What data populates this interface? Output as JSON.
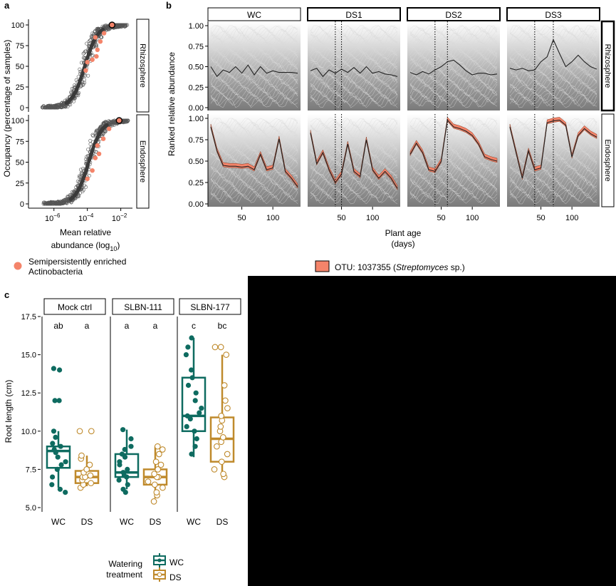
{
  "panel_a": {
    "label": "a",
    "ylabel": "Occupancy (percentage of samples)",
    "xlabel_line1": "Mean relative",
    "xlabel_line2_pre": "abundance (log",
    "xlabel_line2_sub": "10",
    "xlabel_line2_post": ")",
    "y_ticks": [
      "100",
      "75",
      "50",
      "25",
      "0"
    ],
    "x_ticks": [
      {
        "base": "10",
        "exp": "−6"
      },
      {
        "base": "10",
        "exp": "−4"
      },
      {
        "base": "10",
        "exp": "−2"
      }
    ],
    "strips": [
      "Rhizosphere",
      "Endosphere"
    ],
    "legend_line1": "Semipersistently enriched",
    "legend_line2": "Actinobacteria",
    "highlight_color": "#f4846a"
  },
  "panel_b": {
    "label": "b",
    "ylabel": "Ranked relative abundance",
    "xlabel_line1": "Plant age",
    "xlabel_line2": "(days)",
    "y_ticks": [
      "1.00",
      "0.75",
      "0.50",
      "0.25",
      "0.00"
    ],
    "x_ticks": [
      "50",
      "100"
    ],
    "facets": [
      "WC",
      "DS1",
      "DS2",
      "DS3"
    ],
    "strips": [
      "Rhizosphere",
      "Endosphere"
    ],
    "legend_pre": "OTU: 1037355 (",
    "legend_italic": "Streptomyces",
    "legend_post": " sp.)",
    "otu_color": "#f4846a"
  },
  "panel_c": {
    "label": "c",
    "ylabel": "Root length (cm)",
    "y_ticks": [
      "17.5",
      "15.0",
      "12.5",
      "10.0",
      "7.5",
      "5.0"
    ],
    "facets": [
      "Mock ctrl",
      "SLBN-111",
      "SLBN-177"
    ],
    "x_labels": [
      "WC",
      "DS"
    ],
    "letters": [
      "ab",
      "a",
      "a",
      "a",
      "c",
      "bc"
    ],
    "legend_title_line1": "Watering",
    "legend_title_line2": "treatment",
    "legend_items": [
      "WC",
      "DS"
    ],
    "colors": {
      "WC": "#0e6b60",
      "DS": "#bf8a2c"
    }
  },
  "chart_data": [
    {
      "type": "scatter",
      "panel": "a",
      "xlabel": "Mean relative abundance (log10)",
      "ylabel": "Occupancy (percentage of samples)",
      "xscale": "log",
      "xlim": [
        3e-08,
        0.05
      ],
      "ylim": [
        0,
        100
      ],
      "facets": [
        "Rhizosphere",
        "Endosphere"
      ],
      "series": [
        {
          "name": "Semipersistently enriched Actinobacteria",
          "points": {
            "Rhizosphere": [
              [
                0.0002,
                58
              ],
              [
                0.00035,
                62
              ],
              [
                0.0004,
                70
              ],
              [
                8e-05,
                45
              ],
              [
                0.0001,
                55
              ],
              [
                0.0006,
                80
              ],
              [
                0.001,
                90
              ],
              [
                0.003,
                100
              ],
              [
                0.0003,
                85
              ]
            ],
            "Endosphere": [
              [
                0.0001,
                30
              ],
              [
                0.0002,
                40
              ],
              [
                0.0003,
                55
              ],
              [
                0.0005,
                60
              ],
              [
                0.0009,
                78
              ],
              [
                0.002,
                90
              ],
              [
                0.008,
                100
              ],
              [
                0.0004,
                70
              ]
            ]
          }
        }
      ]
    },
    {
      "type": "line",
      "panel": "b",
      "xlabel": "Plant age (days)",
      "ylabel": "Ranked relative abundance",
      "ylim": [
        0,
        1
      ],
      "facets": [
        "WC",
        "DS1",
        "DS2",
        "DS3"
      ],
      "rows": [
        "Rhizosphere",
        "Endosphere"
      ],
      "series": [
        {
          "name": "OTU: 1037355 (Streptomyces sp.)",
          "x": [
            0,
            10,
            20,
            30,
            40,
            50,
            60,
            70,
            80,
            90,
            100,
            110,
            120,
            130,
            140
          ],
          "values": {
            "WC_Rhizosphere": [
              0.5,
              0.38,
              0.46,
              0.43,
              0.5,
              0.42,
              0.52,
              0.4,
              0.5,
              0.42,
              0.45,
              0.43,
              0.43,
              0.43,
              0.42
            ],
            "DS1_Rhizosphere": [
              0.45,
              0.48,
              0.38,
              0.46,
              0.42,
              0.47,
              0.43,
              0.49,
              0.42,
              0.5,
              0.42,
              0.44,
              0.41,
              0.4,
              0.38
            ],
            "DS2_Rhizosphere": [
              0.43,
              0.4,
              0.44,
              0.41,
              0.46,
              0.5,
              0.56,
              0.58,
              0.52,
              0.45,
              0.4,
              0.42,
              0.42,
              0.4,
              0.41
            ],
            "DS3_Rhizosphere": [
              0.48,
              0.46,
              0.48,
              0.45,
              0.46,
              0.56,
              0.62,
              0.83,
              0.66,
              0.5,
              0.56,
              0.64,
              0.56,
              0.5,
              0.47
            ],
            "WC_Endosphere": [
              0.9,
              0.62,
              0.45,
              0.44,
              0.44,
              0.43,
              0.44,
              0.4,
              0.58,
              0.4,
              0.42,
              0.76,
              0.38,
              0.3,
              0.2
            ],
            "DS1_Endosphere": [
              0.83,
              0.47,
              0.6,
              0.4,
              0.25,
              0.35,
              0.7,
              0.38,
              0.32,
              0.75,
              0.4,
              0.3,
              0.38,
              0.3,
              0.18
            ],
            "DS2_Endosphere": [
              0.58,
              0.71,
              0.6,
              0.4,
              0.38,
              0.5,
              0.98,
              0.9,
              0.88,
              0.85,
              0.8,
              0.7,
              0.55,
              0.52,
              0.5
            ],
            "DS3_Endosphere": [
              0.9,
              0.6,
              0.3,
              0.62,
              0.4,
              0.42,
              0.95,
              0.97,
              0.98,
              0.92,
              0.55,
              0.8,
              0.88,
              0.82,
              0.78
            ]
          }
        }
      ],
      "annotations": {
        "vertical_dotted_lines_days": {
          "DS1": [
            40,
            50
          ],
          "DS2": [
            40,
            60
          ],
          "DS3": [
            40,
            70
          ]
        }
      }
    },
    {
      "type": "box",
      "panel": "c",
      "ylabel": "Root length (cm)",
      "ylim": [
        5.0,
        17.5
      ],
      "categories": [
        "Mock ctrl WC",
        "Mock ctrl DS",
        "SLBN-111 WC",
        "SLBN-111 DS",
        "SLBN-177 WC",
        "SLBN-177 DS"
      ],
      "boxes": [
        {
          "facet": "Mock ctrl",
          "treatment": "WC",
          "min": 6.3,
          "q1": 7.6,
          "median": 8.7,
          "q3": 9.0,
          "max": 10.0,
          "letter": "ab",
          "points": [
            6.0,
            6.2,
            6.5,
            7.0,
            7.5,
            7.8,
            8.0,
            8.3,
            8.6,
            8.8,
            9.0,
            9.2,
            9.6,
            10.0,
            12.0,
            12.0,
            14.0,
            14.1
          ]
        },
        {
          "facet": "Mock ctrl",
          "treatment": "DS",
          "min": 6.4,
          "q1": 6.6,
          "median": 7.0,
          "q3": 7.4,
          "max": 8.4,
          "letter": "a",
          "points": [
            6.3,
            6.5,
            6.6,
            6.8,
            7.0,
            7.0,
            7.1,
            7.3,
            7.5,
            7.8,
            8.2,
            8.4,
            10.0,
            10.0
          ]
        },
        {
          "facet": "SLBN-111",
          "treatment": "WC",
          "min": 6.2,
          "q1": 7.0,
          "median": 7.3,
          "q3": 8.5,
          "max": 10.1,
          "letter": "a",
          "points": [
            6.0,
            6.2,
            6.5,
            6.8,
            7.0,
            7.1,
            7.3,
            7.5,
            7.8,
            8.0,
            8.3,
            8.5,
            8.8,
            9.0,
            9.5,
            10.1
          ]
        },
        {
          "facet": "SLBN-111",
          "treatment": "DS",
          "min": 5.6,
          "q1": 6.5,
          "median": 7.0,
          "q3": 7.5,
          "max": 9.0,
          "letter": "a",
          "points": [
            5.4,
            5.8,
            6.0,
            6.3,
            6.5,
            6.7,
            7.0,
            7.0,
            7.2,
            7.5,
            7.8,
            8.0,
            8.5,
            8.8,
            9.0
          ]
        },
        {
          "facet": "SLBN-177",
          "treatment": "WC",
          "min": 8.3,
          "q1": 10.0,
          "median": 11.0,
          "q3": 13.5,
          "max": 16.1,
          "letter": "c",
          "points": [
            8.5,
            9.0,
            9.5,
            10.0,
            10.3,
            10.8,
            11.0,
            11.2,
            11.5,
            12.0,
            12.5,
            13.0,
            13.5,
            14.0,
            15.0,
            15.5,
            16.1
          ]
        },
        {
          "facet": "SLBN-177",
          "treatment": "DS",
          "min": 7.0,
          "q1": 8.0,
          "median": 9.5,
          "q3": 10.9,
          "max": 15.0,
          "letter": "bc",
          "points": [
            7.0,
            7.2,
            7.5,
            8.0,
            8.5,
            9.0,
            9.3,
            9.6,
            10.0,
            10.3,
            10.7,
            11.0,
            11.5,
            12.0,
            13.0,
            15.0,
            15.5,
            15.5
          ]
        }
      ]
    }
  ]
}
